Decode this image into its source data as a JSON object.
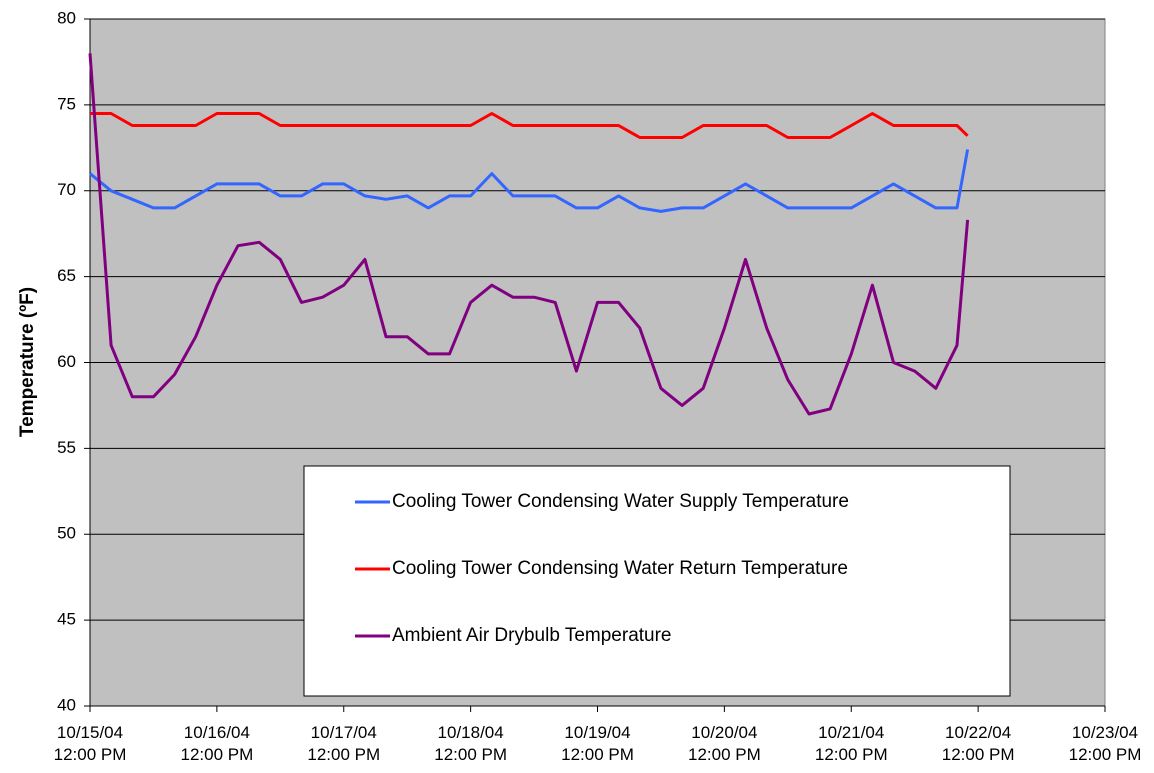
{
  "chart_data": {
    "type": "line",
    "y_label": "Temperature (ºF)",
    "x": [
      "2004-10-15T12:00",
      "2004-10-15T16:00",
      "2004-10-15T20:00",
      "2004-10-16T00:00",
      "2004-10-16T04:00",
      "2004-10-16T08:00",
      "2004-10-16T12:00",
      "2004-10-16T16:00",
      "2004-10-16T20:00",
      "2004-10-17T00:00",
      "2004-10-17T04:00",
      "2004-10-17T08:00",
      "2004-10-17T12:00",
      "2004-10-17T16:00",
      "2004-10-17T20:00",
      "2004-10-18T00:00",
      "2004-10-18T04:00",
      "2004-10-18T08:00",
      "2004-10-18T12:00",
      "2004-10-18T16:00",
      "2004-10-18T20:00",
      "2004-10-19T00:00",
      "2004-10-19T04:00",
      "2004-10-19T08:00",
      "2004-10-19T12:00",
      "2004-10-19T16:00",
      "2004-10-19T20:00",
      "2004-10-20T00:00",
      "2004-10-20T04:00",
      "2004-10-20T08:00",
      "2004-10-20T12:00",
      "2004-10-20T16:00",
      "2004-10-20T20:00",
      "2004-10-21T00:00",
      "2004-10-21T04:00",
      "2004-10-21T08:00",
      "2004-10-21T12:00",
      "2004-10-21T16:00",
      "2004-10-21T20:00",
      "2004-10-22T00:00",
      "2004-10-22T04:00",
      "2004-10-22T08:00",
      "2004-10-22T10:00"
    ],
    "series": [
      {
        "name": "Cooling Tower Condensing Water Supply Temperature",
        "color": "#3366ff",
        "values": [
          71,
          70,
          69.5,
          69,
          69,
          69.7,
          70.4,
          70.4,
          70.4,
          69.7,
          69.7,
          70.4,
          70.4,
          69.7,
          69.5,
          69.7,
          69,
          69.7,
          69.7,
          71,
          69.7,
          69.7,
          69.7,
          69,
          69,
          69.7,
          69,
          68.8,
          69,
          69,
          69.7,
          70.4,
          69.7,
          69,
          69,
          69,
          69,
          69.7,
          70.4,
          69.7,
          69,
          69,
          72.4
        ]
      },
      {
        "name": "Cooling Tower Condensing Water Return Temperature",
        "color": "#ff0000",
        "values": [
          74.5,
          74.5,
          73.8,
          73.8,
          73.8,
          73.8,
          74.5,
          74.5,
          74.5,
          73.8,
          73.8,
          73.8,
          73.8,
          73.8,
          73.8,
          73.8,
          73.8,
          73.8,
          73.8,
          74.5,
          73.8,
          73.8,
          73.8,
          73.8,
          73.8,
          73.8,
          73.1,
          73.1,
          73.1,
          73.8,
          73.8,
          73.8,
          73.8,
          73.1,
          73.1,
          73.1,
          73.8,
          74.5,
          73.8,
          73.8,
          73.8,
          73.8,
          73.2
        ]
      },
      {
        "name": "Ambient Air Drybulb Temperature",
        "color": "#800080",
        "values": [
          78,
          61,
          58,
          58,
          59.3,
          61.5,
          64.5,
          66.8,
          67,
          66,
          63.5,
          63.8,
          64.5,
          66,
          61.5,
          61.5,
          60.5,
          60.5,
          63.5,
          64.5,
          63.8,
          63.8,
          63.5,
          59.5,
          63.5,
          63.5,
          62,
          58.5,
          57.5,
          58.5,
          62,
          66,
          62,
          59,
          57,
          57.3,
          60.5,
          64.5,
          60,
          59.5,
          58.5,
          61,
          68.3
        ]
      }
    ],
    "xlim": [
      "2004-10-15T12:00",
      "2004-10-23T12:00"
    ],
    "xticks": [
      {
        "value": "2004-10-15T12:00",
        "label": "10/15/04\n12:00 PM"
      },
      {
        "value": "2004-10-16T12:00",
        "label": "10/16/04\n12:00 PM"
      },
      {
        "value": "2004-10-17T12:00",
        "label": "10/17/04\n12:00 PM"
      },
      {
        "value": "2004-10-18T12:00",
        "label": "10/18/04\n12:00 PM"
      },
      {
        "value": "2004-10-19T12:00",
        "label": "10/19/04\n12:00 PM"
      },
      {
        "value": "2004-10-20T12:00",
        "label": "10/20/04\n12:00 PM"
      },
      {
        "value": "2004-10-21T12:00",
        "label": "10/21/04\n12:00 PM"
      },
      {
        "value": "2004-10-22T12:00",
        "label": "10/22/04\n12:00 PM"
      },
      {
        "value": "2004-10-23T12:00",
        "label": "10/23/04\n12:00 PM"
      }
    ],
    "ylim": [
      40,
      80
    ],
    "yticks": [
      40,
      45,
      50,
      55,
      60,
      65,
      70,
      75,
      80
    ],
    "grid": true
  }
}
